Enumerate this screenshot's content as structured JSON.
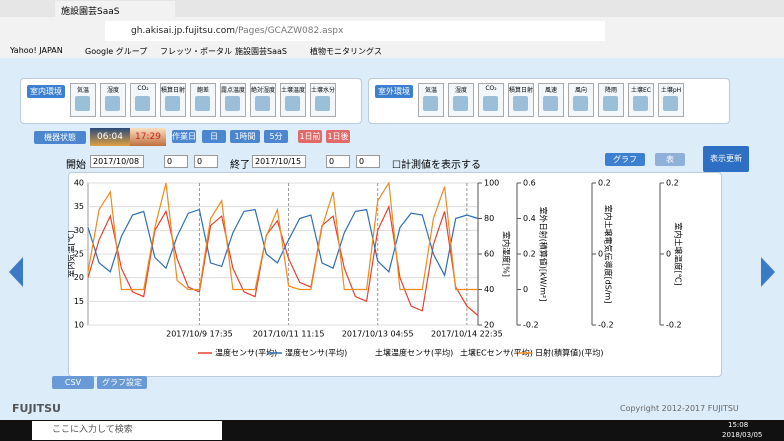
{
  "browser": {
    "tab_title": "施設園芸SaaS",
    "url_host": "gh.akisai.jp.fujitsu.com",
    "url_path": "/Pages/GCAZW082.aspx",
    "bookmarks": [
      "Yahoo! JAPAN",
      "Google グループ",
      "フレッツ・ポータル",
      "施設園芸SaaS",
      "植物モニタリングス"
    ]
  },
  "indoor": {
    "label": "室内環境",
    "sensors": [
      "気温",
      "湿度",
      "CO₂",
      "積算日射",
      "飽差",
      "露点温度",
      "絶対湿度",
      "土壌温度",
      "土壌水分"
    ]
  },
  "outdoor": {
    "label": "室外環境",
    "sensors": [
      "気温",
      "湿度",
      "CO₂",
      "積算日射",
      "風速",
      "風向",
      "降雨",
      "土壌EC",
      "土壌pH"
    ]
  },
  "equipment": {
    "label": "機器状態",
    "sunrise": "06:04",
    "sunset": "17:29",
    "buttons": [
      "作業日",
      "日",
      "1時間",
      "5分",
      "1日前",
      "1日後"
    ]
  },
  "range": {
    "start_label": "開始",
    "start_date": "2017/10/08",
    "start_hour": "0",
    "start_min": "0",
    "end_label": "終了",
    "end_date": "2017/10/15",
    "end_hour": "0",
    "end_min": "0",
    "show_values": "計測値を表示する",
    "graph": "グラフ",
    "table": "表",
    "refresh": "表示更新"
  },
  "chart_data": {
    "type": "line",
    "categories": [
      null,
      null,
      null,
      null,
      null,
      null,
      null,
      null,
      null,
      null,
      "2017/10/9 17:35",
      null,
      null,
      null,
      null,
      null,
      null,
      null,
      "2017/10/11 11:15",
      null,
      null,
      null,
      null,
      null,
      null,
      null,
      "2017/10/13 04:55",
      null,
      null,
      null,
      null,
      null,
      null,
      null,
      "2017/10/14 22:35",
      null
    ],
    "ylim": [
      10,
      40
    ],
    "yticks": [
      10,
      15,
      20,
      25,
      30,
      35,
      40
    ],
    "ylabel": "室内気温[℃]",
    "y2lim": [
      20,
      100
    ],
    "y2ticks": [
      20,
      40,
      60,
      80,
      100
    ],
    "y2label": "室内湿度[%]",
    "y3lim": [
      -0.2,
      0.6
    ],
    "y3ticks": [
      -0.2,
      0,
      0.2,
      0.4,
      0.6
    ],
    "y3label": "室外日射(積算値)[kW/m²]",
    "y4lim": [
      -0.2,
      0.2
    ],
    "y4ticks": [
      -0.2,
      0,
      0.2
    ],
    "y4label": "室内土壌電気伝導度[dS/m]",
    "y5lim": [
      -0.2,
      0.2
    ],
    "y5ticks": [
      -0.2,
      0,
      0.2
    ],
    "y5label": "室内土壌温度[℃]",
    "grid": true,
    "series": [
      {
        "name": "温度センサ(平均)",
        "color": "#e8412b",
        "values": [
          20,
          28,
          33,
          22,
          17,
          16,
          30,
          34,
          24,
          18,
          17,
          31,
          33,
          22,
          17,
          16,
          29,
          32,
          24,
          19,
          18,
          31,
          33,
          22,
          16,
          15,
          30,
          35,
          20,
          14,
          13,
          27,
          34,
          18,
          14,
          12
        ]
      },
      {
        "name": "湿度センサ(平均)",
        "color": "#2e6fb5",
        "axis": "y2",
        "values": [
          75,
          55,
          50,
          70,
          82,
          84,
          58,
          52,
          70,
          83,
          85,
          55,
          53,
          72,
          84,
          85,
          60,
          55,
          68,
          80,
          82,
          55,
          52,
          72,
          84,
          85,
          56,
          50,
          75,
          83,
          82,
          60,
          48,
          80,
          82,
          80
        ]
      },
      {
        "name": "土壌温度センサ(平均)",
        "axis": "y5",
        "values": [
          null,
          null,
          null,
          null,
          null,
          null,
          null,
          null,
          null,
          null,
          null,
          null,
          null,
          null,
          null,
          null,
          null,
          null,
          null,
          null,
          null,
          null,
          null,
          null,
          null,
          null,
          null,
          null,
          null,
          null,
          null,
          null,
          null,
          null,
          null,
          null
        ]
      },
      {
        "name": "土壌ECセンサ(平均)",
        "axis": "y4",
        "values": [
          null,
          null,
          null,
          null,
          null,
          null,
          null,
          null,
          null,
          null,
          null,
          null,
          null,
          null,
          null,
          null,
          null,
          null,
          null,
          null,
          null,
          null,
          null,
          null,
          null,
          null,
          null,
          null,
          null,
          null,
          null,
          null,
          null,
          null,
          null,
          null
        ]
      },
      {
        "name": "日射(積算値)(平均)",
        "color": "#f08a1c",
        "axis": "y3",
        "values": [
          0.1,
          0.45,
          0.55,
          0,
          0,
          0,
          0.35,
          0.6,
          0.05,
          0,
          0,
          0.4,
          0.5,
          0,
          0,
          0,
          0.3,
          0.45,
          0.02,
          0,
          0,
          0.35,
          0.55,
          0,
          0,
          0,
          0.5,
          0.6,
          0,
          0,
          0,
          0.4,
          0.58,
          0,
          0,
          0
        ]
      }
    ]
  },
  "tools": {
    "csv": "CSV",
    "graph_settings": "グラフ設定"
  },
  "footer": {
    "logo": "FUJITSU",
    "copyright": "Copyright 2012-2017 FUJITSU"
  },
  "taskbar": {
    "search": "ここに入力して検索",
    "time": "15:08",
    "date": "2018/03/05"
  }
}
